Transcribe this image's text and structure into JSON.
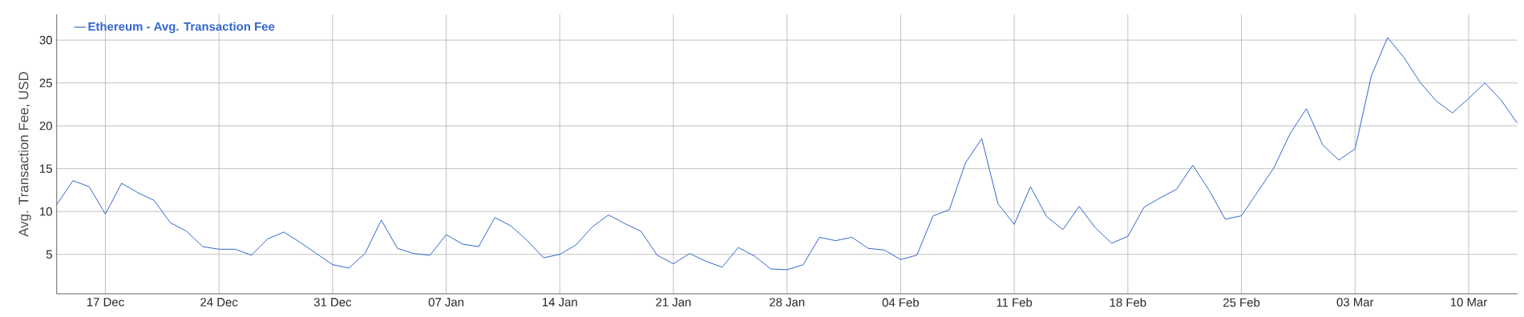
{
  "chart_data": {
    "type": "line",
    "ylabel": "Avg. Transaction Fee, USD",
    "categories": [
      null,
      null,
      null,
      "17 Dec",
      null,
      null,
      null,
      null,
      null,
      null,
      "24 Dec",
      null,
      null,
      null,
      null,
      null,
      null,
      "31 Dec",
      null,
      null,
      null,
      null,
      null,
      null,
      "07 Jan",
      null,
      null,
      null,
      null,
      null,
      null,
      "14 Jan",
      null,
      null,
      null,
      null,
      null,
      null,
      "21 Jan",
      null,
      null,
      null,
      null,
      null,
      null,
      "28 Jan",
      null,
      null,
      null,
      null,
      null,
      null,
      "04 Feb",
      null,
      null,
      null,
      null,
      null,
      null,
      "11 Feb",
      null,
      null,
      null,
      null,
      null,
      null,
      "18 Feb",
      null,
      null,
      null,
      null,
      null,
      null,
      "25 Feb",
      null,
      null,
      null,
      null,
      null,
      null,
      "03 Mar",
      null,
      null,
      null,
      null,
      null,
      null,
      "10 Mar",
      null,
      null,
      null
    ],
    "series": [
      {
        "name": "Ethereum - Avg. Transaction Fee",
        "color": "#3366cc",
        "values": [
          10.8,
          13.6,
          12.9,
          9.7,
          13.3,
          12.2,
          11.3,
          8.7,
          7.7,
          5.9,
          5.6,
          5.6,
          4.9,
          6.8,
          7.6,
          6.4,
          5.1,
          3.8,
          3.4,
          5.1,
          9.0,
          5.7,
          5.1,
          4.9,
          7.3,
          6.2,
          5.9,
          9.3,
          8.3,
          6.6,
          4.6,
          5.0,
          6.1,
          8.2,
          9.6,
          8.6,
          7.7,
          4.9,
          3.9,
          5.1,
          4.2,
          3.5,
          5.8,
          4.8,
          3.3,
          3.2,
          3.8,
          7.0,
          6.6,
          7.0,
          5.7,
          5.5,
          4.4,
          4.9,
          9.5,
          10.2,
          15.7,
          18.5,
          10.9,
          8.5,
          12.9,
          9.4,
          7.9,
          10.6,
          8.1,
          6.3,
          7.1,
          10.5,
          11.6,
          12.6,
          15.4,
          12.5,
          9.1,
          9.5,
          12.3,
          15.1,
          19.1,
          22.0,
          17.8,
          16.0,
          17.3,
          25.8,
          30.3,
          28.0,
          25.1,
          22.9,
          21.5,
          23.2,
          25.0,
          23.0,
          20.3
        ]
      }
    ],
    "ylim": [
      0.4,
      33
    ],
    "yticks": [
      5,
      10,
      15,
      20,
      25,
      30
    ],
    "grid": true,
    "legend": "top left",
    "marker": "none",
    "line_style": "solid"
  }
}
